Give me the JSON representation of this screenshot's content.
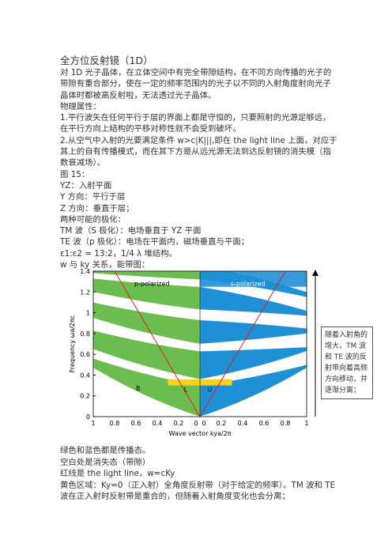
{
  "title": "全方位反射镜（1D）",
  "paragraphs": [
    "对 1D 光子晶体，在立体空间中有完全带隙结构，在不同方向传播的光子的带隙有重合部分，使在一定的频率范围内的光子以不同的入射角度射向光子晶体时都被高反射啦，无法透过光子晶体。",
    "物理属性：",
    "1.平行波矢在任何平行于层的界面上都是守恒的，只要照射的光源足够远，在平行方向上结构的平移对称性就不会受到破坏。",
    "2.从空气中入射的光要满足条件 w>c|K|||,即在 the light line 上面，对应于其上的自有传播模式，而在其下方是从远光源无法到达反射镜的消失模（指数衰减场）。",
    "图 15：",
    "YZ：入射平面",
    "Y 方向：平行于层",
    "Z 方向：垂直于层；",
    "两种可能的极化：",
    "TM 波（S 极化）：电场垂直于 YZ 平面",
    "TE 波（p 极化）：电场在平面内，磁场垂直与平面；",
    "ε1:ε2 = 13:2，1/4 λ 堆结构。",
    "w 与 ky 关系，能带图："
  ],
  "figure": {
    "ylabel": "Frequency ωa/2πc",
    "xlabel": "Wave vector kya/2π",
    "yticks": [
      "0",
      "0.2",
      "0.4",
      "0.6",
      "0.8",
      "1",
      "1.2",
      "1.4"
    ],
    "xticks_left": [
      "1",
      "0.8",
      "0.6",
      "0.4",
      "0.2",
      "0"
    ],
    "xticks_right": [
      "0",
      "0.2",
      "0.4",
      "0.6",
      "0.8",
      "1"
    ],
    "p_label": "p-polarized",
    "s_label": "s-polarized",
    "point_labels": [
      "B",
      "L",
      "U"
    ]
  },
  "side_note": "随着入射角的增大，TM 波和 TE 波的反射带向着高频方向移动，并逐渐分离；",
  "after": [
    "绿色和蓝色都是传播态。",
    "空白处是消失态（带隙）",
    "红线是 the light line，w=cKy",
    "黄色区域：Ky=0（正入射）全角度反射带（对于给定的频率）。TM 波和 TE 波在正入射时反射带是重合的，但随着入射角度变化也会分离；"
  ]
}
